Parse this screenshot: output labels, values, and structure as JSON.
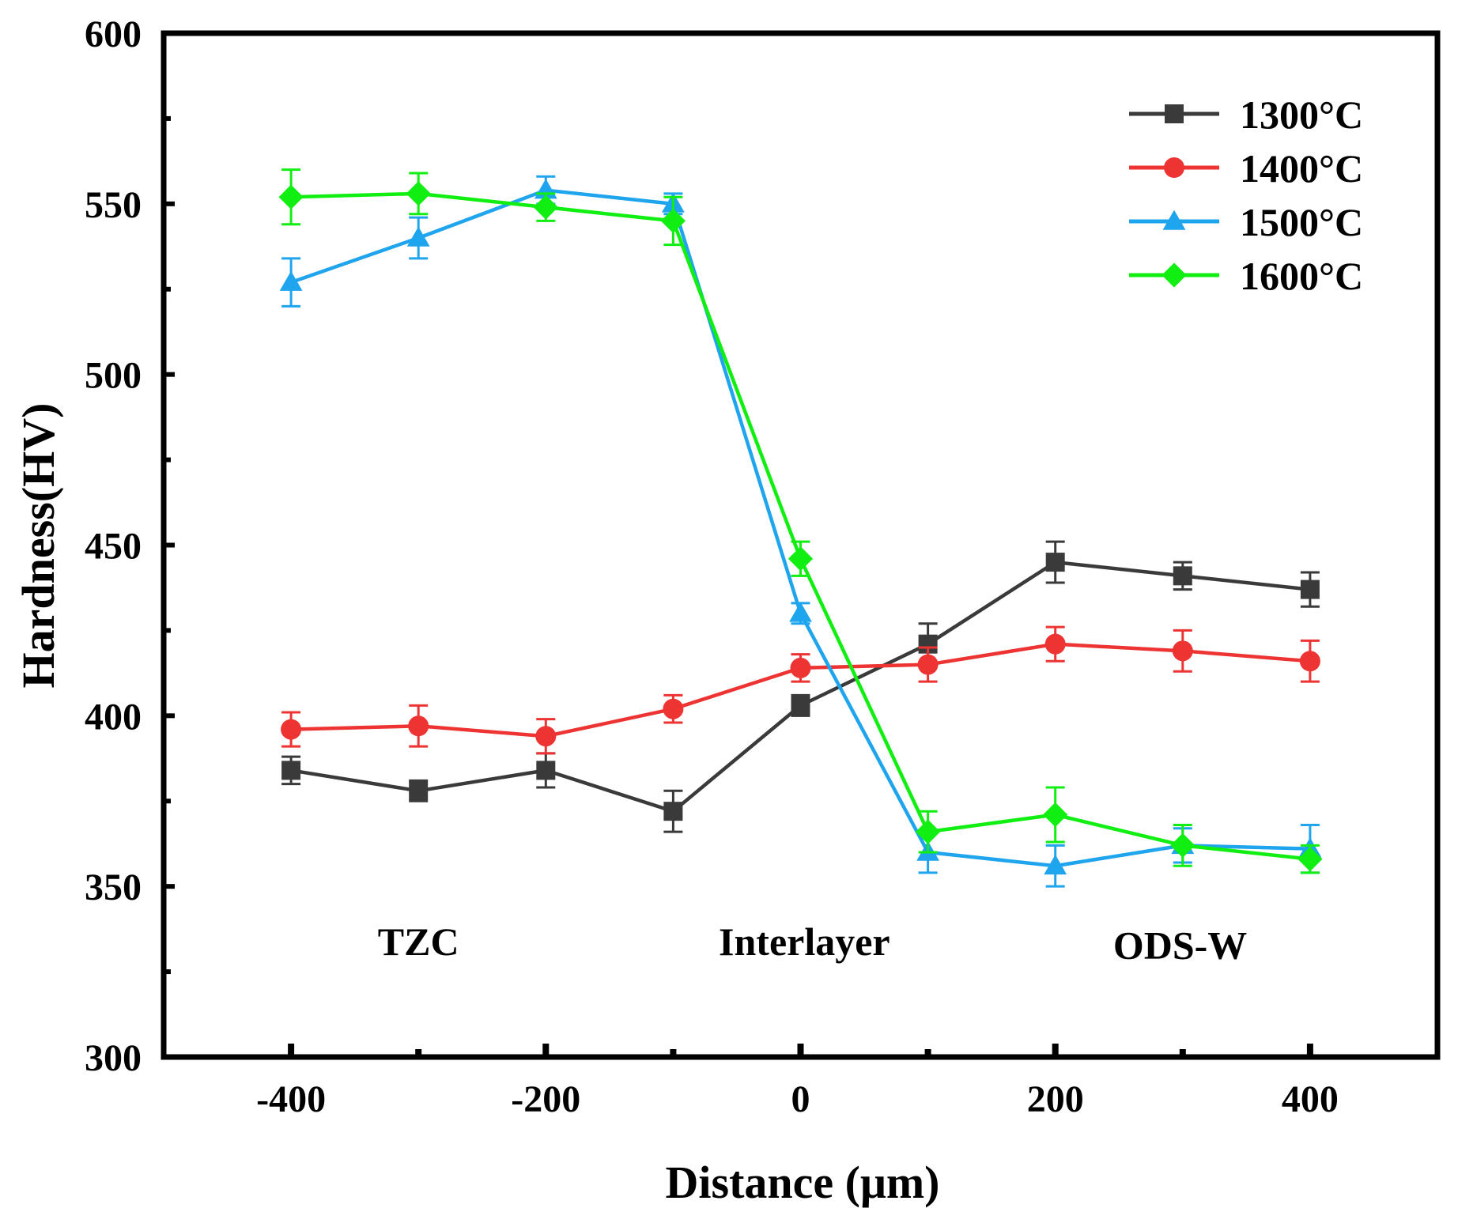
{
  "chart_data": {
    "type": "line",
    "title": "",
    "xlabel": "Distance (μm)",
    "ylabel": "Hardness(HV)",
    "xlim": [
      -500,
      500
    ],
    "ylim": [
      300,
      600
    ],
    "x_ticks": [
      -400,
      -200,
      0,
      200,
      400
    ],
    "y_ticks": [
      300,
      350,
      400,
      450,
      500,
      550,
      600
    ],
    "x_tick_labels": [
      "-400",
      "-200",
      "0",
      "200",
      "400"
    ],
    "y_tick_labels": [
      "300",
      "350",
      "400",
      "450",
      "500",
      "550",
      "600"
    ],
    "x": [
      -400,
      -300,
      -200,
      -100,
      0,
      100,
      200,
      300,
      400
    ],
    "series": [
      {
        "name": "1300°C",
        "color": "#3a3a3a",
        "marker": "square",
        "values": [
          384,
          378,
          384,
          372,
          403,
          421,
          445,
          441,
          437
        ],
        "errors": [
          4,
          3,
          5,
          6,
          3,
          6,
          6,
          4,
          5
        ]
      },
      {
        "name": "1400°C",
        "color": "#ee3333",
        "marker": "circle",
        "values": [
          396,
          397,
          394,
          402,
          414,
          415,
          421,
          419,
          416
        ],
        "errors": [
          5,
          6,
          5,
          4,
          4,
          5,
          5,
          6,
          6
        ]
      },
      {
        "name": "1500°C",
        "color": "#1fa4ee",
        "marker": "triangle",
        "values": [
          527,
          540,
          554,
          550,
          430,
          360,
          356,
          362,
          361
        ],
        "errors": [
          7,
          6,
          4,
          3,
          3,
          6,
          6,
          5,
          7
        ]
      },
      {
        "name": "1600°C",
        "color": "#11ee11",
        "marker": "diamond",
        "values": [
          552,
          553,
          549,
          545,
          446,
          366,
          371,
          362,
          358
        ],
        "errors": [
          8,
          6,
          4,
          7,
          5,
          6,
          8,
          6,
          4
        ]
      }
    ],
    "annotations": [
      {
        "text": "TZC",
        "x": -300,
        "y": 334
      },
      {
        "text": "Interlayer",
        "x": 3,
        "y": 334
      },
      {
        "text": "ODS-W",
        "x": 298,
        "y": 333
      }
    ],
    "legend_position": "top-right",
    "grid": false
  }
}
